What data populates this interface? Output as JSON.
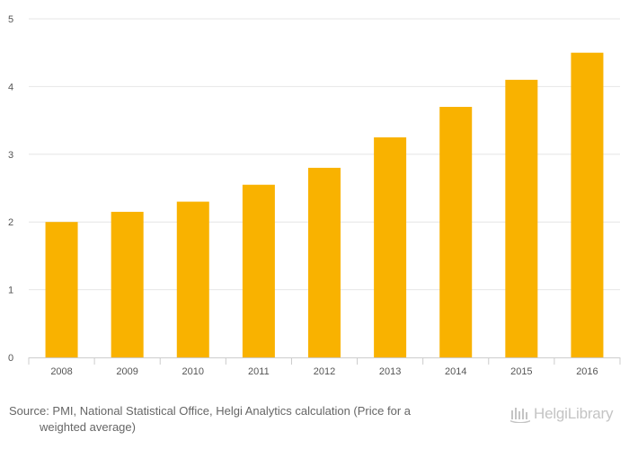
{
  "chart_data": {
    "type": "bar",
    "categories": [
      "2008",
      "2009",
      "2010",
      "2011",
      "2012",
      "2013",
      "2014",
      "2015",
      "2016"
    ],
    "values": [
      2.0,
      2.15,
      2.3,
      2.55,
      2.8,
      3.25,
      3.7,
      4.1,
      4.5
    ],
    "ylim": [
      0,
      5
    ],
    "yticks": [
      0,
      1,
      2,
      3,
      4,
      5
    ],
    "grid": true,
    "bar_color": "#f9b200",
    "title": "",
    "xlabel": "",
    "ylabel": ""
  },
  "source": {
    "line1": "Source: PMI, National Statistical Office, Helgi Analytics calculation (Price for a",
    "line2": "weighted average)"
  },
  "logo": {
    "text": "HelgiLibrary",
    "icon": "helgi-library-logo-icon"
  }
}
